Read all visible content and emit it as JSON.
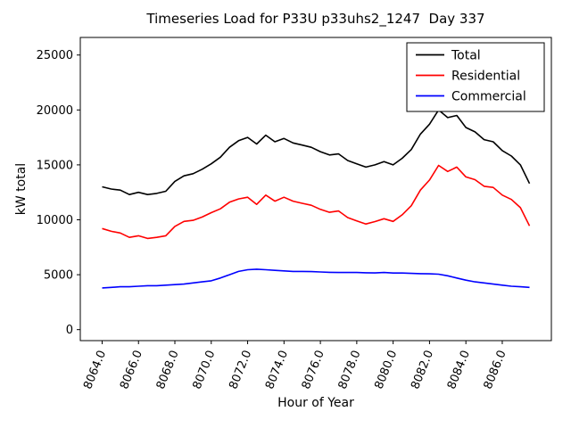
{
  "chart_data": {
    "type": "line",
    "title": "Timeseries Load for P33U p33uhs2_1247  Day 337",
    "xlabel": "Hour of Year",
    "ylabel": "kW total",
    "grid": false,
    "legend_position": "upper right",
    "xlim": [
      8062.8,
      8088.7
    ],
    "ylim": [
      -1000,
      26600
    ],
    "xticks": [
      8064,
      8066,
      8068,
      8070,
      8072,
      8074,
      8076,
      8078,
      8080,
      8082,
      8084,
      8086
    ],
    "xtick_labels": [
      "8064.0",
      "8066.0",
      "8068.0",
      "8070.0",
      "8072.0",
      "8074.0",
      "8076.0",
      "8078.0",
      "8080.0",
      "8082.0",
      "8084.0",
      "8086.0"
    ],
    "yticks": [
      0,
      5000,
      10000,
      15000,
      20000,
      25000
    ],
    "x": [
      8064.0,
      8064.5,
      8065.0,
      8065.5,
      8066.0,
      8066.5,
      8067.0,
      8067.5,
      8068.0,
      8068.5,
      8069.0,
      8069.5,
      8070.0,
      8070.5,
      8071.0,
      8071.5,
      8072.0,
      8072.5,
      8073.0,
      8073.5,
      8074.0,
      8074.5,
      8075.0,
      8075.5,
      8076.0,
      8076.5,
      8077.0,
      8077.5,
      8078.0,
      8078.5,
      8079.0,
      8079.5,
      8080.0,
      8080.5,
      8081.0,
      8081.5,
      8082.0,
      8082.5,
      8083.0,
      8083.5,
      8084.0,
      8084.5,
      8085.0,
      8085.5,
      8086.0,
      8086.5,
      8087.0,
      8087.5
    ],
    "series": [
      {
        "name": "Total",
        "color": "#000000",
        "values": [
          13000,
          12800,
          12700,
          12300,
          12500,
          12300,
          12400,
          12600,
          13500,
          14000,
          14200,
          14600,
          15100,
          15700,
          16600,
          17200,
          17500,
          16900,
          17700,
          17100,
          17400,
          17000,
          16800,
          16600,
          16200,
          15900,
          16000,
          15400,
          15100,
          14800,
          15000,
          15300,
          15000,
          15600,
          16400,
          17800,
          18700,
          20000,
          19300,
          19500,
          18400,
          18000,
          17300,
          17100,
          16300,
          15800,
          15000,
          13300
        ]
      },
      {
        "name": "Residential",
        "color": "#ff0000",
        "values": [
          9200,
          8950,
          8800,
          8400,
          8550,
          8300,
          8400,
          8550,
          9400,
          9850,
          9950,
          10250,
          10650,
          11000,
          11600,
          11900,
          12050,
          11400,
          12250,
          11700,
          12050,
          11700,
          11500,
          11320,
          10950,
          10680,
          10800,
          10200,
          9900,
          9620,
          9840,
          10100,
          9850,
          10450,
          11280,
          12700,
          13620,
          14950,
          14400,
          14800,
          13900,
          13650,
          13050,
          12950,
          12250,
          11850,
          11100,
          9450
        ]
      },
      {
        "name": "Commercial",
        "color": "#0000ff",
        "values": [
          3800,
          3850,
          3900,
          3900,
          3950,
          4000,
          4000,
          4050,
          4100,
          4150,
          4250,
          4350,
          4450,
          4700,
          5000,
          5300,
          5450,
          5500,
          5450,
          5400,
          5350,
          5300,
          5300,
          5280,
          5250,
          5220,
          5200,
          5200,
          5200,
          5180,
          5160,
          5200,
          5150,
          5150,
          5120,
          5100,
          5080,
          5050,
          4900,
          4700,
          4500,
          4350,
          4250,
          4150,
          4050,
          3950,
          3900,
          3850
        ]
      }
    ]
  }
}
